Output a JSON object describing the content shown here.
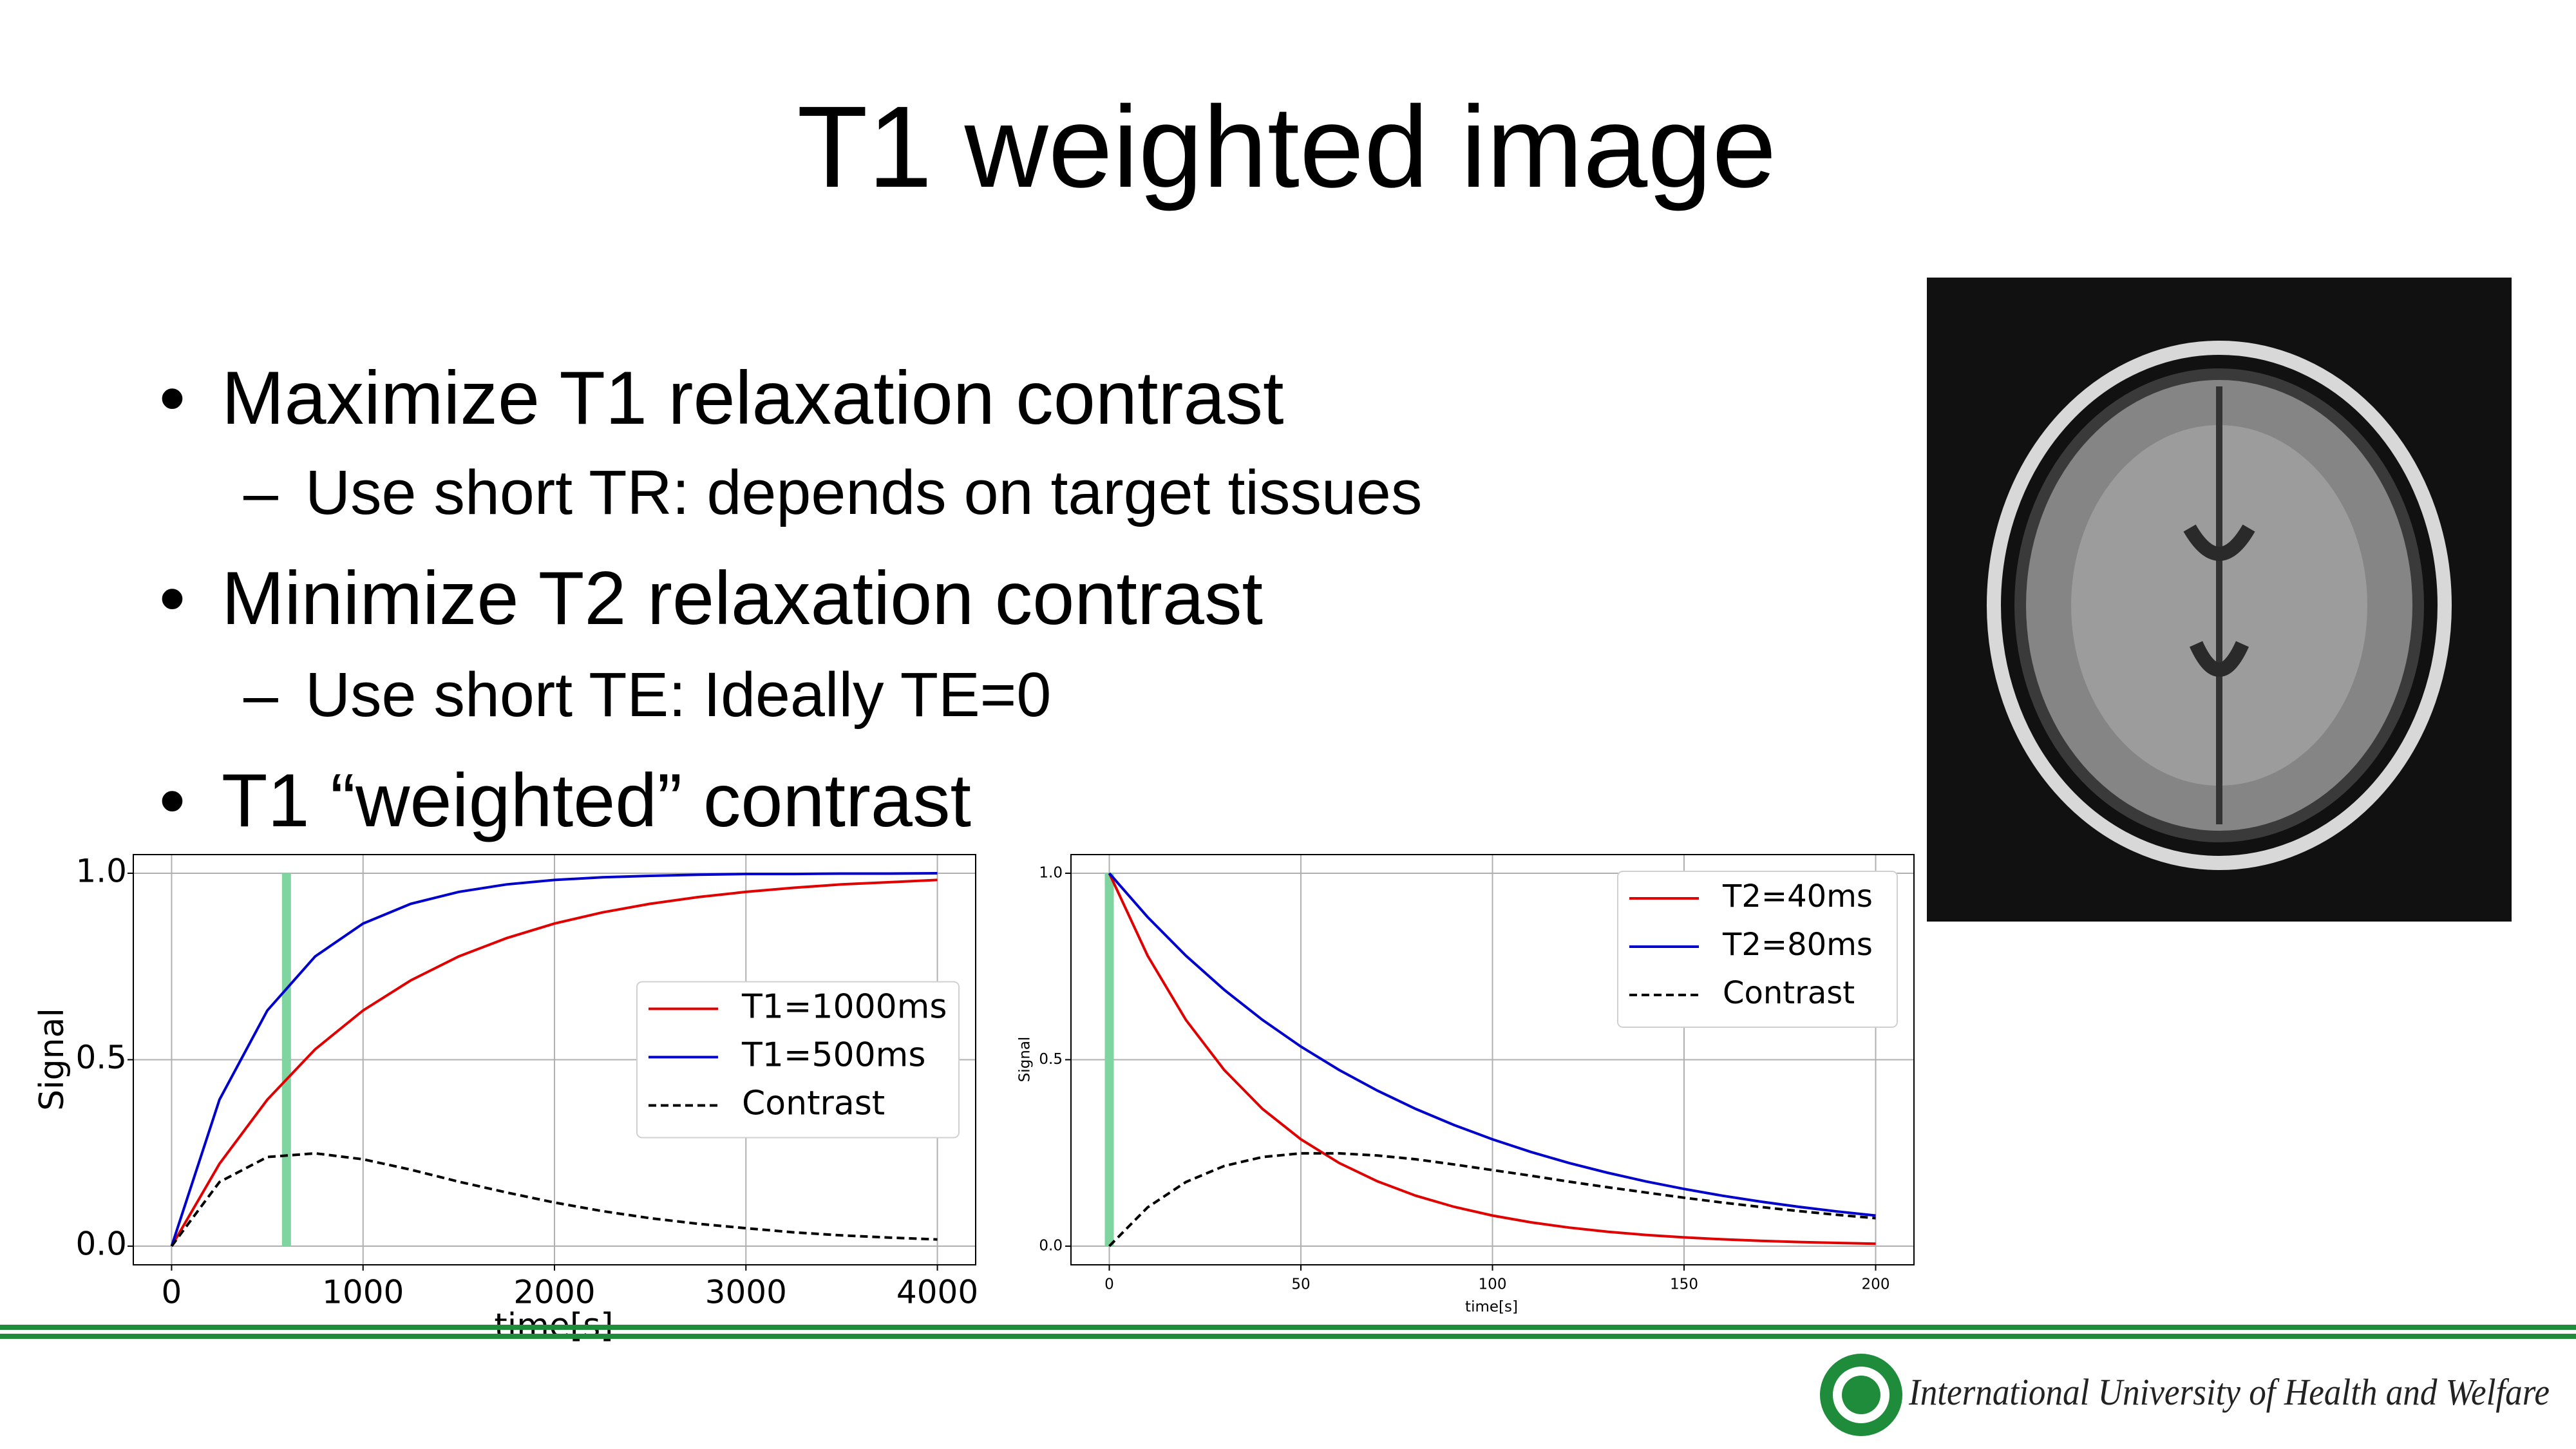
{
  "slide": {
    "title": "T1 weighted image",
    "bullets": [
      {
        "text": "Maximize T1 relaxation contrast",
        "sub": [
          "Use short TR: depends on target tissues"
        ]
      },
      {
        "text": "Minimize T2 relaxation contrast",
        "sub": [
          "Use short TE: Ideally TE=0"
        ]
      },
      {
        "text": "T1 “weighted” contrast",
        "sub": []
      }
    ],
    "footer": "International University of Health and Welfare"
  },
  "chart_data": [
    {
      "type": "line",
      "xlabel": "time[s]",
      "ylabel": "Signal",
      "x": [
        0,
        250,
        500,
        750,
        1000,
        1250,
        1500,
        1750,
        2000,
        2250,
        2500,
        2750,
        3000,
        3250,
        3500,
        3750,
        4000
      ],
      "series": [
        {
          "name": "T1=1000ms",
          "color": "#e00000",
          "linestyle": "solid",
          "values": [
            0,
            0.221,
            0.393,
            0.528,
            0.632,
            0.713,
            0.777,
            0.826,
            0.865,
            0.895,
            0.918,
            0.936,
            0.95,
            0.961,
            0.97,
            0.976,
            0.982
          ]
        },
        {
          "name": "T1=500ms",
          "color": "#0000cc",
          "linestyle": "solid",
          "values": [
            0,
            0.393,
            0.632,
            0.777,
            0.865,
            0.918,
            0.95,
            0.97,
            0.982,
            0.989,
            0.993,
            0.996,
            0.998,
            0.998,
            0.999,
            0.999,
            1.0
          ]
        },
        {
          "name": "Contrast",
          "color": "#000000",
          "linestyle": "dashed",
          "values": [
            0,
            0.172,
            0.239,
            0.249,
            0.233,
            0.205,
            0.173,
            0.144,
            0.117,
            0.094,
            0.075,
            0.06,
            0.048,
            0.037,
            0.029,
            0.023,
            0.018
          ]
        }
      ],
      "highlight_x": 600,
      "highlight_color": "#7fd4a0",
      "xlim": [
        -200,
        4200
      ],
      "xticks": [
        0,
        1000,
        2000,
        3000,
        4000
      ],
      "ylim": [
        -0.05,
        1.05
      ],
      "yticks": [
        {
          "value": 0,
          "label": "0.0"
        },
        0.5,
        {
          "value": 1,
          "label": "1.0"
        }
      ],
      "grid": true,
      "legend": "center right"
    },
    {
      "type": "line",
      "xlabel": "time[s]",
      "ylabel": "Signal",
      "x": [
        0,
        10,
        20,
        30,
        40,
        50,
        60,
        70,
        80,
        90,
        100,
        110,
        120,
        130,
        140,
        150,
        160,
        170,
        180,
        190,
        200
      ],
      "series": [
        {
          "name": "T2=40ms",
          "color": "#e00000",
          "linestyle": "solid",
          "values": [
            1,
            0.7788,
            0.6065,
            0.4724,
            0.3679,
            0.2865,
            0.2231,
            0.1738,
            0.1353,
            0.1054,
            0.0821,
            0.0639,
            0.0498,
            0.0388,
            0.0302,
            0.0235,
            0.0183,
            0.0143,
            0.0111,
            0.0087,
            0.0067
          ]
        },
        {
          "name": "T2=80ms",
          "color": "#0000cc",
          "linestyle": "solid",
          "values": [
            1,
            0.8825,
            0.7788,
            0.6873,
            0.6065,
            0.5353,
            0.4724,
            0.4169,
            0.3679,
            0.3247,
            0.2865,
            0.2528,
            0.2231,
            0.1969,
            0.1738,
            0.1534,
            0.1353,
            0.1194,
            0.1054,
            0.093,
            0.0821
          ]
        },
        {
          "name": "Contrast",
          "color": "#000000",
          "linestyle": "dashed",
          "values": [
            0,
            0.104,
            0.172,
            0.215,
            0.239,
            0.249,
            0.249,
            0.243,
            0.233,
            0.219,
            0.204,
            0.189,
            0.173,
            0.158,
            0.144,
            0.13,
            0.117,
            0.105,
            0.094,
            0.084,
            0.075
          ]
        }
      ],
      "highlight_x": 0,
      "highlight_color": "#7fd4a0",
      "xlim": [
        -10,
        210
      ],
      "xticks": [
        0,
        50,
        100,
        150,
        200
      ],
      "ylim": [
        -0.05,
        1.05
      ],
      "yticks": [
        {
          "value": 0,
          "label": "0.0"
        },
        0.5,
        {
          "value": 1,
          "label": "1.0"
        }
      ],
      "grid": true,
      "legend": "upper right"
    }
  ]
}
